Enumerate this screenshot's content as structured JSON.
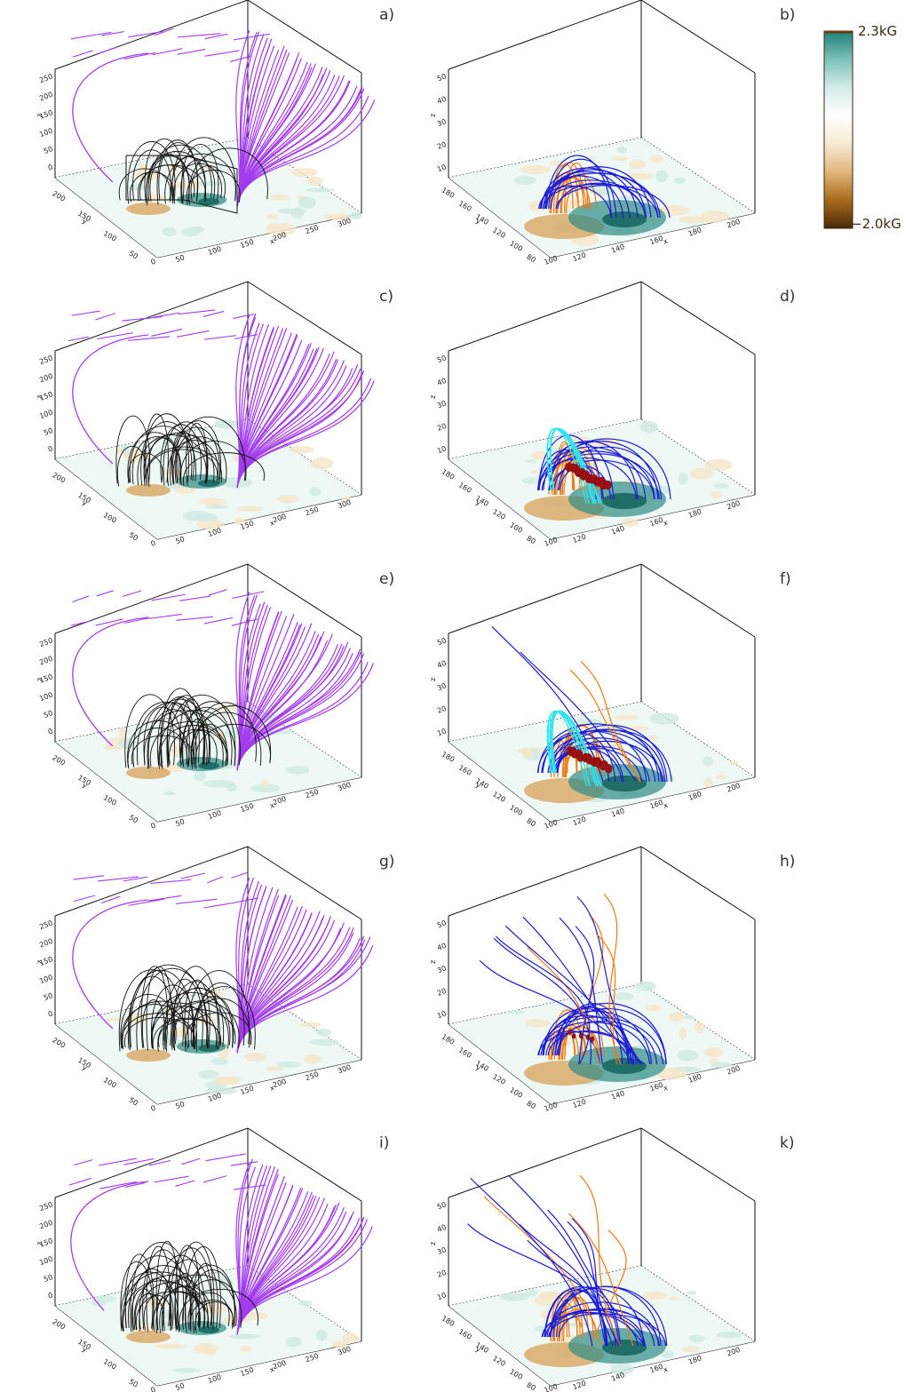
{
  "panels": [
    {
      "label": "a)",
      "kind": "overview"
    },
    {
      "label": "b)",
      "kind": "zoom",
      "cyan": false,
      "rope": false,
      "tall": false
    },
    {
      "label": "c)",
      "kind": "overview"
    },
    {
      "label": "d)",
      "kind": "zoom",
      "cyan": true,
      "rope": true,
      "tall": false
    },
    {
      "label": "e)",
      "kind": "overview"
    },
    {
      "label": "f)",
      "kind": "zoom",
      "cyan": true,
      "rope": true,
      "tall": "partial"
    },
    {
      "label": "g)",
      "kind": "overview"
    },
    {
      "label": "h)",
      "kind": "zoom",
      "cyan": false,
      "rope": "small",
      "tall": true
    },
    {
      "label": "i)",
      "kind": "overview"
    },
    {
      "label": "k)",
      "kind": "zoom",
      "cyan": false,
      "rope": false,
      "tall": true
    }
  ],
  "overview_axes": {
    "z_label": "z",
    "y_label": "y",
    "x_label": "x",
    "z_ticks": [
      "0",
      "50",
      "100",
      "150",
      "200",
      "250"
    ],
    "y_ticks": [
      "50",
      "100",
      "150",
      "200"
    ],
    "x_ticks": [
      "50",
      "100",
      "150",
      "200",
      "250",
      "300"
    ],
    "origin_label": "0"
  },
  "zoom_axes": {
    "z_label": "z",
    "y_label": "y",
    "x_label": "x",
    "z_ticks": [
      "10",
      "20",
      "30",
      "40",
      "50"
    ],
    "y_ticks": [
      "80",
      "100",
      "120",
      "140",
      "160",
      "180"
    ],
    "x_ticks": [
      "120",
      "140",
      "160",
      "180",
      "200"
    ],
    "origin_label": "100"
  },
  "colorbar": {
    "max_label": "2.3kG",
    "min_label": "−2.0kG",
    "stops": [
      "#4a2a08",
      "#a86a1c",
      "#e3b67a",
      "#f6ead4",
      "#ffffff",
      "#d4ece9",
      "#7cc0b8",
      "#1f7f79"
    ]
  },
  "colors": {
    "open_field": "#a33bf0",
    "closed_field": "#111111",
    "orange_lines": "#f07a10",
    "blue_lines": "#1a1ad8",
    "cyan_lines": "#2ee4f0",
    "flux_rope": "#a01010"
  }
}
